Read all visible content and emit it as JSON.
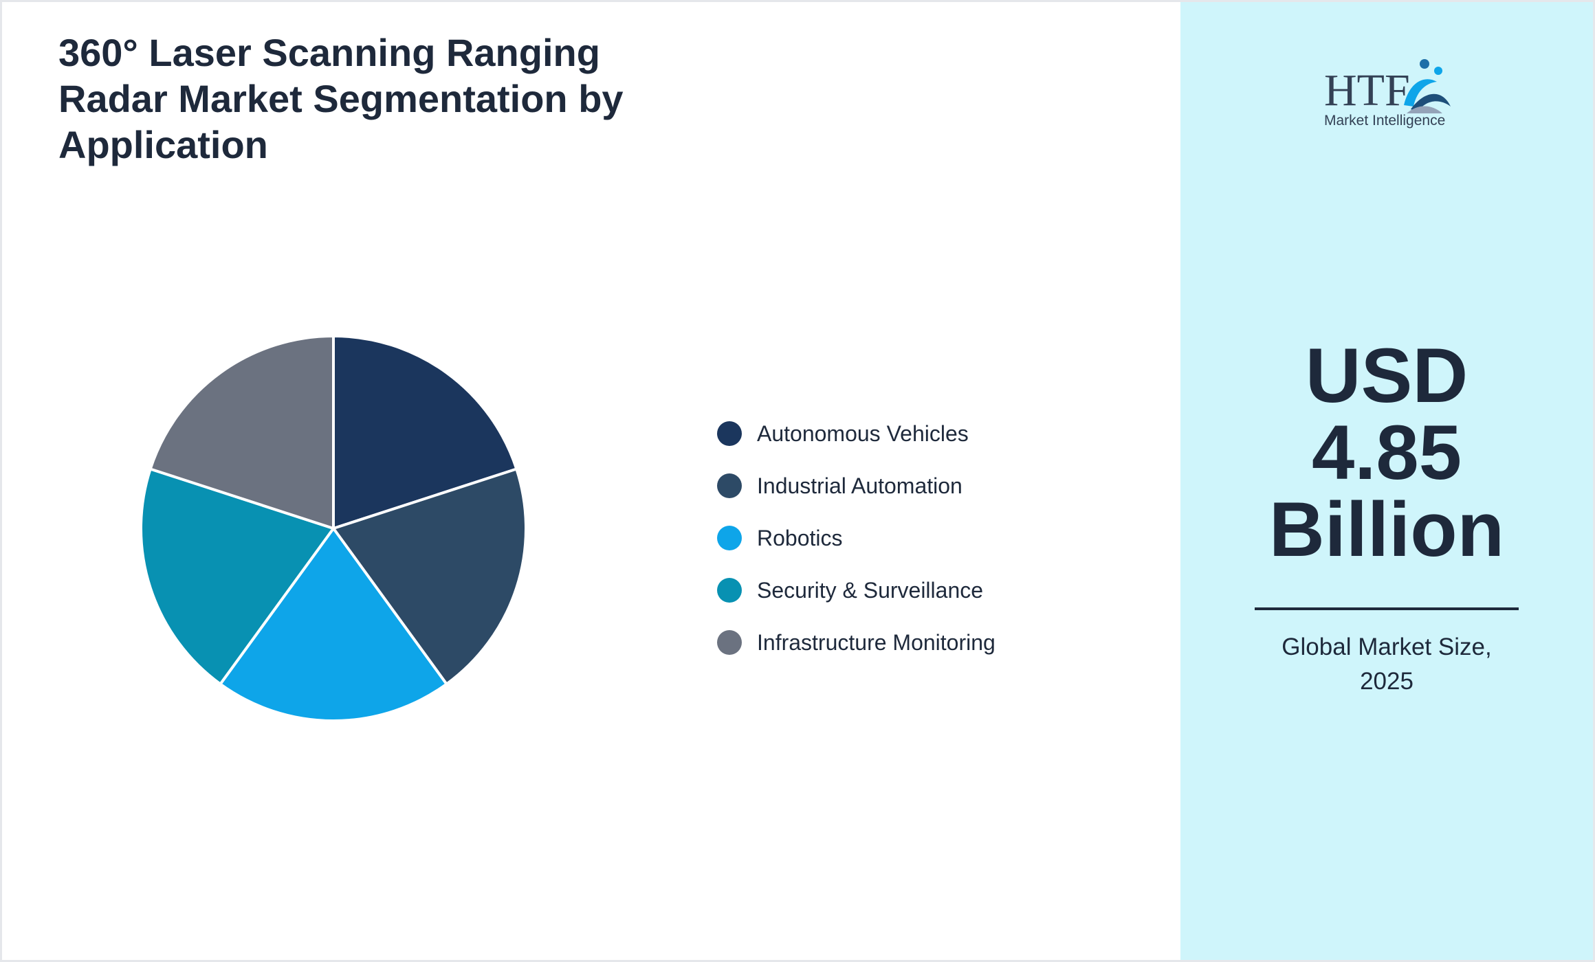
{
  "title": "360° Laser Scanning Ranging Radar Market Segmentation by Application",
  "chart_data": {
    "type": "pie",
    "categories": [
      "Autonomous Vehicles",
      "Industrial Automation",
      "Robotics",
      "Security & Surveillance",
      "Infrastructure Monitoring"
    ],
    "values": [
      20,
      20,
      20,
      20,
      20
    ],
    "colors": [
      "#1b365d",
      "#2d4a66",
      "#0ea5e9",
      "#0891b2",
      "#6b7280"
    ],
    "legend_position": "right"
  },
  "sidebar": {
    "logo": {
      "brand": "HTF",
      "tagline": "Market Intelligence"
    },
    "market_value_lines": [
      "USD",
      "4.85",
      "Billion"
    ],
    "caption_line1": "Global Market Size,",
    "caption_line2": "2025"
  }
}
